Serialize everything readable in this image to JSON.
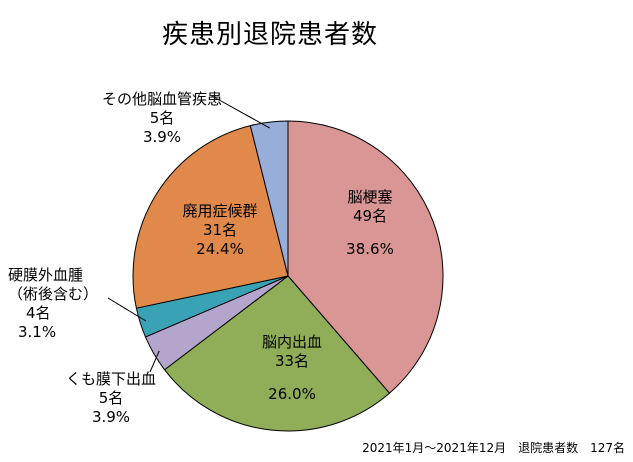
{
  "chart_data": {
    "type": "pie",
    "title": "疾患別退院患者数",
    "start_angle_deg": 0,
    "direction": "clockwise",
    "slices": [
      {
        "name": "脳梗塞",
        "count": "49名",
        "percent": "38.6%",
        "value": 38.6,
        "color": "#D99694"
      },
      {
        "name": "脳内出血",
        "count": "33名",
        "percent": "26.0%",
        "value": 26.0,
        "color": "#8FAE57"
      },
      {
        "name": "くも膜下出血",
        "count": "5名",
        "percent": "3.9%",
        "value": 3.9,
        "color": "#B3A5CC"
      },
      {
        "name_line1": "硬膜外血腫",
        "name_line2": "（術後含む）",
        "count": "4名",
        "percent": "3.1%",
        "value": 3.1,
        "color": "#3AA2B5"
      },
      {
        "name": "廃用症候群",
        "count": "31名",
        "percent": "24.4%",
        "value": 24.4,
        "color": "#E0894A"
      },
      {
        "name": "その他脳血管疾患",
        "count": "5名",
        "percent": "3.9%",
        "value": 3.9,
        "color": "#97AED8"
      }
    ]
  },
  "footer": "2021年1月～2021年12月　退院患者数　127名"
}
